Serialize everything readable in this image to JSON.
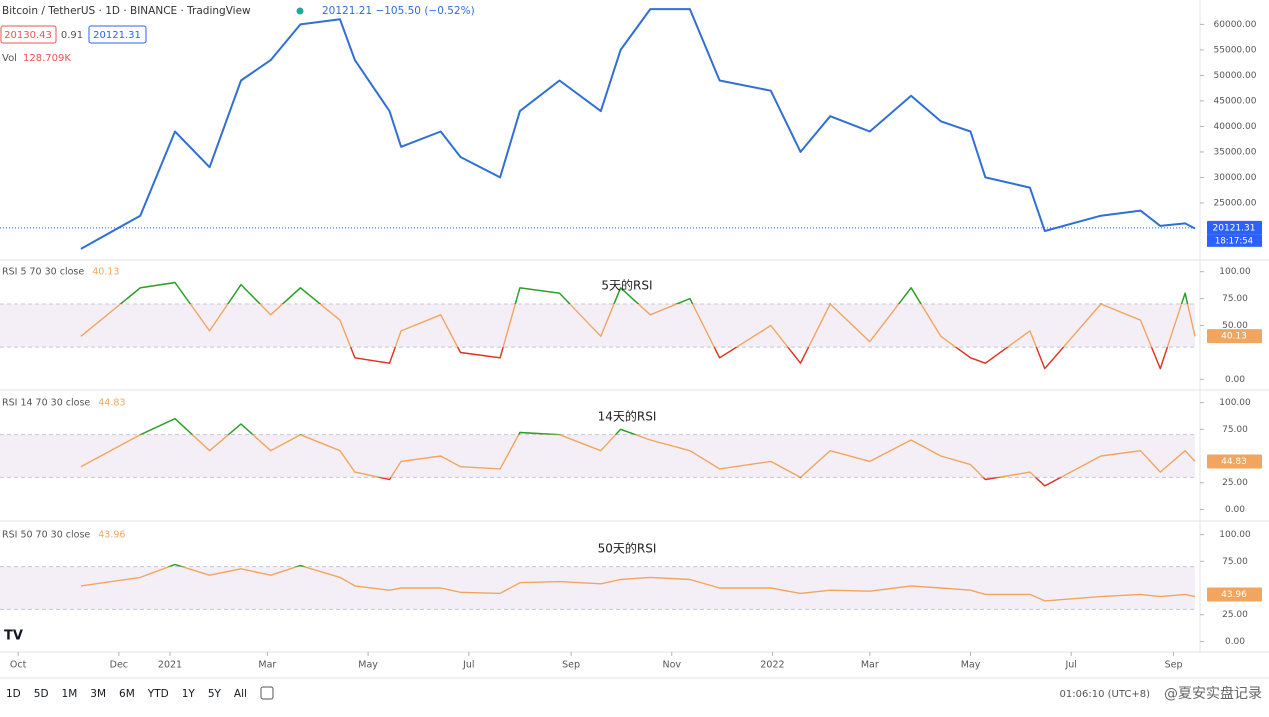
{
  "header": {
    "quote": "20121.21 −105.50 (−0.52%)",
    "bid": "20130.43",
    "spread": "0.91",
    "ask": "20121.31",
    "volume_label": "Vol",
    "volume": "128.709K",
    "countdown": "18:17:54"
  },
  "chart_data": [
    {
      "type": "line",
      "title": "Bitcoin / TetherUS · 1D · BINANCE · TradingView",
      "color": "#2f6fd6",
      "x": [
        38,
        74,
        95,
        116,
        135,
        153,
        171,
        195,
        204,
        225,
        232,
        256,
        268,
        292,
        304,
        328,
        353,
        365,
        383,
        407,
        425,
        456,
        474,
        492,
        516,
        541,
        559,
        577,
        586,
        613,
        622,
        656,
        680,
        692,
        707,
        713
      ],
      "values": [
        16000,
        22500,
        39000,
        32000,
        49000,
        53000,
        60000,
        61000,
        53000,
        43000,
        36000,
        39000,
        34000,
        30000,
        43000,
        49000,
        43000,
        55000,
        63000,
        63000,
        49000,
        47000,
        35000,
        42000,
        39000,
        46000,
        41000,
        39000,
        30000,
        28000,
        19500,
        22500,
        23500,
        20500,
        21000,
        20000
      ],
      "last_value": 20121.31,
      "xlim": [
        -11,
        713
      ],
      "xticks": [
        {
          "value": 0,
          "label": "Oct"
        },
        {
          "value": 61,
          "label": "Dec"
        },
        {
          "value": 92,
          "label": "2021"
        },
        {
          "value": 151,
          "label": "Mar"
        },
        {
          "value": 212,
          "label": "May"
        },
        {
          "value": 273,
          "label": "Jul"
        },
        {
          "value": 335,
          "label": "Sep"
        },
        {
          "value": 396,
          "label": "Nov"
        },
        {
          "value": 457,
          "label": "2022"
        },
        {
          "value": 516,
          "label": "Mar"
        },
        {
          "value": 577,
          "label": "May"
        },
        {
          "value": 638,
          "label": "Jul"
        },
        {
          "value": 700,
          "label": "Sep"
        }
      ],
      "ylim": [
        14600,
        64000
      ],
      "yticks": [
        {
          "value": 25000,
          "label": "25000.00"
        },
        {
          "value": 30000,
          "label": "30000.00"
        },
        {
          "value": 35000,
          "label": "35000.00"
        },
        {
          "value": 40000,
          "label": "40000.00"
        },
        {
          "value": 45000,
          "label": "45000.00"
        },
        {
          "value": 50000,
          "label": "50000.00"
        },
        {
          "value": 55000,
          "label": "55000.00"
        },
        {
          "value": 60000,
          "label": "60000.00"
        }
      ]
    },
    {
      "type": "line",
      "title": "RSI 5 70 30 close",
      "annotation": "5天的RSI",
      "color": "#f2a55e",
      "overbought_color": "#1fa32a",
      "oversold_color": "#e0342a",
      "x": [
        38,
        74,
        95,
        116,
        135,
        153,
        171,
        195,
        204,
        225,
        232,
        256,
        268,
        292,
        304,
        328,
        353,
        365,
        383,
        407,
        425,
        456,
        474,
        492,
        516,
        541,
        559,
        577,
        586,
        613,
        622,
        656,
        680,
        692,
        707,
        713
      ],
      "values": [
        40,
        85,
        90,
        45,
        88,
        60,
        85,
        55,
        20,
        15,
        45,
        60,
        25,
        20,
        85,
        80,
        40,
        85,
        60,
        75,
        20,
        50,
        15,
        70,
        35,
        85,
        40,
        20,
        15,
        45,
        10,
        70,
        55,
        10,
        80,
        40
      ],
      "last_value": 40.13,
      "bands": [
        30,
        70
      ],
      "xlim": [
        -11,
        713
      ],
      "ylim": [
        -8,
        109
      ],
      "yticks": [
        {
          "value": 0,
          "label": "0.00"
        },
        {
          "value": 50,
          "label": "50.00"
        },
        {
          "value": 75,
          "label": "75.00"
        },
        {
          "value": 100,
          "label": "100.00"
        }
      ]
    },
    {
      "type": "line",
      "title": "RSI 14 70 30 close",
      "annotation": "14天的RSI",
      "color": "#f2a55e",
      "overbought_color": "#1fa32a",
      "oversold_color": "#e0342a",
      "x": [
        38,
        74,
        95,
        116,
        135,
        153,
        171,
        195,
        204,
        225,
        232,
        256,
        268,
        292,
        304,
        328,
        353,
        365,
        383,
        407,
        425,
        456,
        474,
        492,
        516,
        541,
        559,
        577,
        586,
        613,
        622,
        656,
        680,
        692,
        707,
        713
      ],
      "values": [
        40,
        70,
        85,
        55,
        80,
        55,
        70,
        55,
        35,
        28,
        45,
        50,
        40,
        38,
        72,
        70,
        55,
        75,
        65,
        55,
        38,
        45,
        30,
        55,
        45,
        65,
        50,
        42,
        28,
        35,
        22,
        50,
        55,
        35,
        55,
        45
      ],
      "last_value": 44.83,
      "bands": [
        30,
        70
      ],
      "xlim": [
        -11,
        713
      ],
      "ylim": [
        -8,
        109
      ],
      "yticks": [
        {
          "value": 0,
          "label": "0.00"
        },
        {
          "value": 25,
          "label": "25.00"
        },
        {
          "value": 75,
          "label": "75.00"
        },
        {
          "value": 100,
          "label": "100.00"
        }
      ]
    },
    {
      "type": "line",
      "title": "RSI 50 70 30 close",
      "annotation": "50天的RSI",
      "color": "#f2a55e",
      "overbought_color": "#1fa32a",
      "oversold_color": "#e0342a",
      "x": [
        38,
        74,
        95,
        116,
        135,
        153,
        171,
        195,
        204,
        225,
        232,
        256,
        268,
        292,
        304,
        328,
        353,
        365,
        383,
        407,
        425,
        456,
        474,
        492,
        516,
        541,
        559,
        577,
        586,
        613,
        622,
        656,
        680,
        692,
        707,
        713
      ],
      "values": [
        52,
        60,
        72,
        62,
        68,
        62,
        71,
        60,
        52,
        48,
        50,
        50,
        46,
        45,
        55,
        56,
        54,
        58,
        60,
        58,
        50,
        50,
        45,
        48,
        47,
        52,
        50,
        48,
        44,
        44,
        38,
        42,
        44,
        42,
        44,
        42
      ],
      "last_value": 43.96,
      "bands": [
        30,
        70
      ],
      "xlim": [
        -11,
        713
      ],
      "ylim": [
        -8,
        109
      ],
      "yticks": [
        {
          "value": 0,
          "label": "0.00"
        },
        {
          "value": 25,
          "label": "25.00"
        },
        {
          "value": 75,
          "label": "75.00"
        },
        {
          "value": 100,
          "label": "100.00"
        }
      ]
    }
  ],
  "toolbar": {
    "ranges": [
      "1D",
      "5D",
      "1M",
      "3M",
      "6M",
      "YTD",
      "1Y",
      "5Y",
      "All"
    ],
    "clock": "01:06:10 (UTC+8)"
  },
  "watermark": "@夏安实盘记录"
}
